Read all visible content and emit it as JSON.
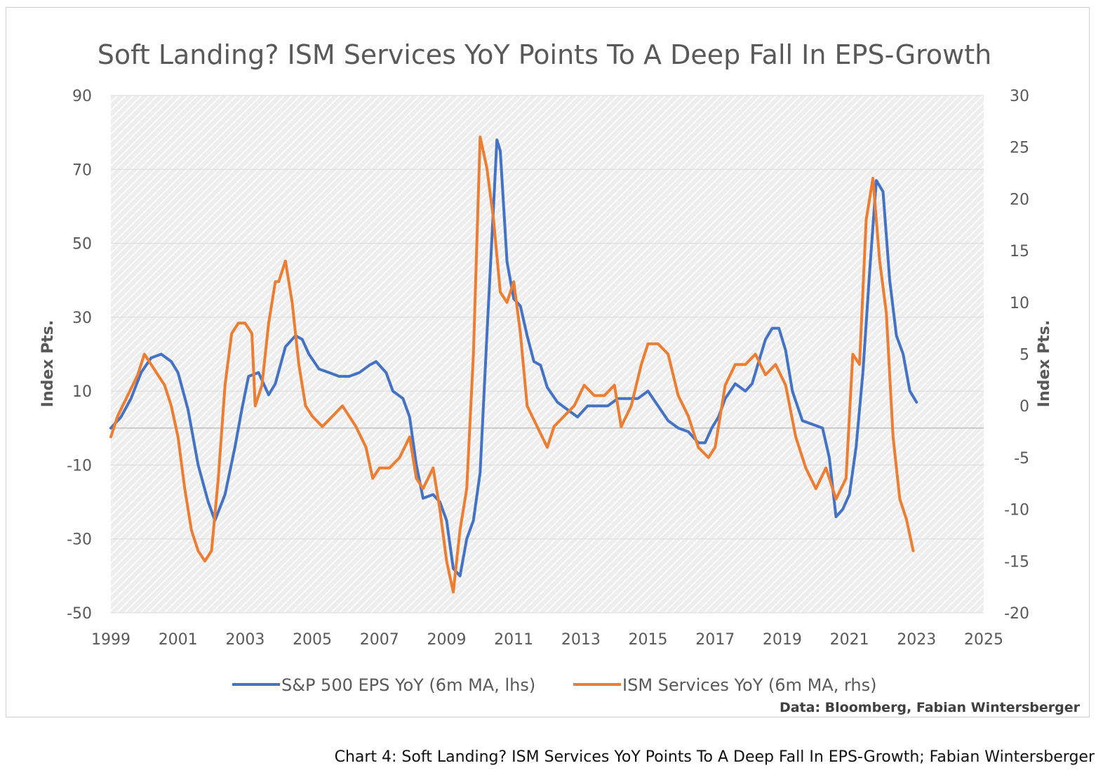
{
  "caption": "Chart 4: Soft Landing? ISM Services YoY Points To A Deep Fall In EPS-Growth; Fabian Wintersberger",
  "colors": {
    "eps": "#4472C4",
    "ism": "#ED7D31",
    "plot_bg": "#eeeeee",
    "hatch": "#ffffff",
    "text": "#595959"
  },
  "chart_data": {
    "type": "line",
    "title": "Soft Landing? ISM Services YoY Points To A Deep Fall In EPS-Growth",
    "ylabel": "Index Pts.",
    "y2label": "Index Pts.",
    "source": "Data: Bloomberg, Fabian Wintersberger",
    "xlim": [
      1999,
      2025
    ],
    "ylim": [
      -50,
      90
    ],
    "y2lim": [
      -20,
      30
    ],
    "x_ticks": [
      "1999",
      "2001",
      "2003",
      "2005",
      "2007",
      "2009",
      "2011",
      "2013",
      "2015",
      "2017",
      "2019",
      "2021",
      "2023",
      "2025"
    ],
    "y_ticks": [
      "90",
      "70",
      "50",
      "30",
      "10",
      "-10",
      "-30",
      "-50"
    ],
    "y2_ticks": [
      "30",
      "25",
      "20",
      "15",
      "10",
      "5",
      "0",
      "-5",
      "-10",
      "-15",
      "-20"
    ],
    "grid": true,
    "legend_position": "bottom",
    "series": [
      {
        "name": "S&P 500 EPS YoY (6m MA, lhs)",
        "axis": "left",
        "x": [
          1999.0,
          1999.3,
          1999.6,
          1999.9,
          2000.2,
          2000.5,
          2000.8,
          2001.0,
          2001.3,
          2001.6,
          2001.9,
          2002.1,
          2002.4,
          2002.7,
          2002.9,
          2003.1,
          2003.4,
          2003.7,
          2003.9,
          2004.2,
          2004.5,
          2004.7,
          2004.9,
          2005.2,
          2005.5,
          2005.8,
          2006.1,
          2006.4,
          2006.7,
          2006.9,
          2007.2,
          2007.4,
          2007.7,
          2007.9,
          2008.1,
          2008.3,
          2008.6,
          2008.8,
          2009.0,
          2009.2,
          2009.4,
          2009.6,
          2009.8,
          2010.0,
          2010.2,
          2010.4,
          2010.5,
          2010.6,
          2010.8,
          2011.0,
          2011.2,
          2011.4,
          2011.6,
          2011.8,
          2012.0,
          2012.3,
          2012.6,
          2012.9,
          2013.2,
          2013.5,
          2013.8,
          2014.1,
          2014.4,
          2014.7,
          2015.0,
          2015.3,
          2015.6,
          2015.9,
          2016.2,
          2016.5,
          2016.7,
          2016.9,
          2017.1,
          2017.3,
          2017.6,
          2017.9,
          2018.1,
          2018.3,
          2018.5,
          2018.7,
          2018.9,
          2019.1,
          2019.3,
          2019.6,
          2019.9,
          2020.2,
          2020.4,
          2020.6,
          2020.8,
          2021.0,
          2021.2,
          2021.4,
          2021.6,
          2021.8,
          2022.0,
          2022.2,
          2022.4,
          2022.6,
          2022.8,
          2023.0
        ],
        "values": [
          0,
          3,
          8,
          15,
          19,
          20,
          18,
          15,
          5,
          -10,
          -20,
          -25,
          -18,
          -5,
          5,
          14,
          15,
          9,
          12,
          22,
          25,
          24,
          20,
          16,
          15,
          14,
          14,
          15,
          17,
          18,
          15,
          10,
          8,
          3,
          -10,
          -19,
          -18,
          -20,
          -25,
          -38,
          -40,
          -30,
          -25,
          -12,
          25,
          60,
          78,
          75,
          45,
          35,
          33,
          25,
          18,
          17,
          11,
          7,
          5,
          3,
          6,
          6,
          6,
          8,
          8,
          8,
          10,
          6,
          2,
          0,
          -1,
          -4,
          -4,
          0,
          3,
          8,
          12,
          10,
          12,
          18,
          24,
          27,
          27,
          21,
          10,
          2,
          1,
          0,
          -8,
          -24,
          -22,
          -18,
          -5,
          15,
          42,
          67,
          64,
          40,
          25,
          20,
          10,
          7
        ]
      },
      {
        "name": "ISM Services YoY (6m MA, rhs)",
        "axis": "right",
        "x": [
          1999.0,
          1999.2,
          1999.5,
          1999.8,
          2000.0,
          2000.2,
          2000.4,
          2000.6,
          2000.8,
          2001.0,
          2001.2,
          2001.4,
          2001.6,
          2001.8,
          2002.0,
          2002.2,
          2002.4,
          2002.6,
          2002.8,
          2003.0,
          2003.2,
          2003.3,
          2003.5,
          2003.7,
          2003.9,
          2004.0,
          2004.2,
          2004.4,
          2004.6,
          2004.8,
          2005.0,
          2005.3,
          2005.6,
          2005.9,
          2006.1,
          2006.3,
          2006.6,
          2006.8,
          2007.0,
          2007.3,
          2007.6,
          2007.9,
          2008.1,
          2008.3,
          2008.6,
          2008.8,
          2009.0,
          2009.2,
          2009.4,
          2009.6,
          2009.8,
          2010.0,
          2010.2,
          2010.4,
          2010.6,
          2010.8,
          2011.0,
          2011.2,
          2011.4,
          2011.7,
          2012.0,
          2012.2,
          2012.5,
          2012.8,
          2013.1,
          2013.4,
          2013.7,
          2014.0,
          2014.2,
          2014.5,
          2014.8,
          2015.0,
          2015.3,
          2015.6,
          2015.9,
          2016.2,
          2016.5,
          2016.8,
          2017.0,
          2017.3,
          2017.6,
          2017.9,
          2018.2,
          2018.5,
          2018.8,
          2019.1,
          2019.4,
          2019.7,
          2020.0,
          2020.3,
          2020.6,
          2020.9,
          2021.1,
          2021.3,
          2021.5,
          2021.7,
          2021.9,
          2022.1,
          2022.3,
          2022.5,
          2022.7,
          2022.9
        ],
        "values": [
          -3,
          -1,
          1,
          3,
          5,
          4,
          3,
          2,
          0,
          -3,
          -8,
          -12,
          -14,
          -15,
          -14,
          -7,
          2,
          7,
          8,
          8,
          7,
          0,
          2,
          8,
          12,
          12,
          14,
          10,
          4,
          0,
          -1,
          -2,
          -1,
          0,
          -1,
          -2,
          -4,
          -7,
          -6,
          -6,
          -5,
          -3,
          -7,
          -8,
          -6,
          -10,
          -15,
          -18,
          -12,
          -8,
          5,
          26,
          23,
          18,
          11,
          10,
          12,
          7,
          0,
          -2,
          -4,
          -2,
          -1,
          0,
          2,
          1,
          1,
          2,
          -2,
          0,
          4,
          6,
          6,
          5,
          1,
          -1,
          -4,
          -5,
          -4,
          2,
          4,
          4,
          5,
          3,
          4,
          2,
          -3,
          -6,
          -8,
          -6,
          -9,
          -7,
          5,
          4,
          18,
          22,
          14,
          9,
          -3,
          -9,
          -11,
          -14
        ]
      }
    ]
  }
}
